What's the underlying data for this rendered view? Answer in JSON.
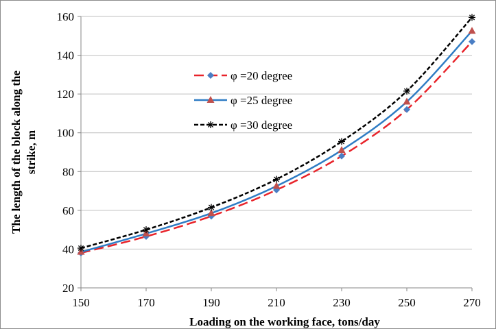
{
  "chart_data": {
    "type": "line",
    "xlabel": "Loading on the working face, tons/day",
    "ylabel_lines": [
      "The length of the block along the",
      "strike, m"
    ],
    "x": [
      150,
      170,
      190,
      210,
      230,
      250,
      270
    ],
    "xlim": [
      150,
      270
    ],
    "ylim": [
      20,
      160
    ],
    "x_ticks": [
      "150",
      "170",
      "190",
      "210",
      "230",
      "250",
      "270"
    ],
    "y_ticks": [
      "20",
      "40",
      "60",
      "80",
      "100",
      "120",
      "140",
      "160"
    ],
    "grid": "horizontal",
    "legend_position": "center-left",
    "series": [
      {
        "name": "φ =20 degree",
        "values": [
          38,
          46.5,
          57,
          70.5,
          88,
          112,
          147
        ],
        "color": "#e8232a",
        "line_style": "dashed",
        "marker": "diamond",
        "marker_color": "#4a7ec4"
      },
      {
        "name": "φ =25 degree",
        "values": [
          38.5,
          48,
          58.5,
          72.5,
          91,
          116,
          152.5
        ],
        "color": "#2e7cc4",
        "line_style": "solid",
        "marker": "triangle",
        "marker_color": "#c0504d"
      },
      {
        "name": "φ =30 degree",
        "values": [
          40.5,
          50,
          61.5,
          76,
          95.5,
          121.5,
          159.5
        ],
        "color": "#000000",
        "line_style": "dotted",
        "marker": "asterisk",
        "marker_color": "#000000"
      }
    ]
  }
}
